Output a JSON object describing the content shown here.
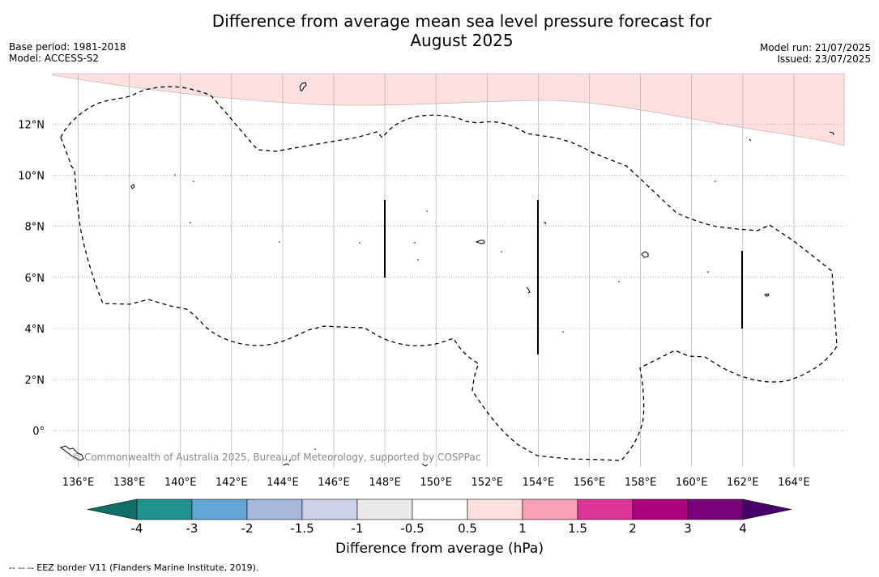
{
  "title": {
    "line1": "Difference from average mean sea level pressure forecast for",
    "line2": "August 2025"
  },
  "meta": {
    "base_period": "Base period: 1981-2018",
    "model": "Model: ACCESS-S2",
    "model_run": "Model run: 21/07/2025",
    "issued": "Issued: 23/07/2025"
  },
  "map": {
    "lon_ticks": [
      "136°E",
      "138°E",
      "140°E",
      "142°E",
      "144°E",
      "146°E",
      "148°E",
      "150°E",
      "152°E",
      "154°E",
      "156°E",
      "158°E",
      "160°E",
      "162°E",
      "164°E"
    ],
    "lat_ticks": [
      "12°N",
      "10°N",
      "8°N",
      "6°N",
      "4°N",
      "2°N",
      "0°"
    ],
    "copyright": "© Commonwealth of Australia 2025, Bureau of Meteorology, supported by COSPPac",
    "shading_color": "#fde0df"
  },
  "colorbar": {
    "labels": [
      "-4",
      "-3",
      "-2",
      "-1.5",
      "-1",
      "-0.5",
      "0.5",
      "1",
      "1.5",
      "2",
      "3",
      "4"
    ],
    "colors": [
      "#1d928f",
      "#64a6d4",
      "#a7b9db",
      "#ccd0e8",
      "#e9e9e9",
      "#ffffff",
      "#fde0df",
      "#f8a0b6",
      "#dd3497",
      "#ae017e",
      "#7a0177"
    ],
    "low_extend_color": "#0e6e66",
    "high_extend_color": "#49006a",
    "title": "Difference from average (hPa)"
  },
  "footnote": "--  --  -- EEZ border V11 (Flanders Marine Institute, 2019)."
}
